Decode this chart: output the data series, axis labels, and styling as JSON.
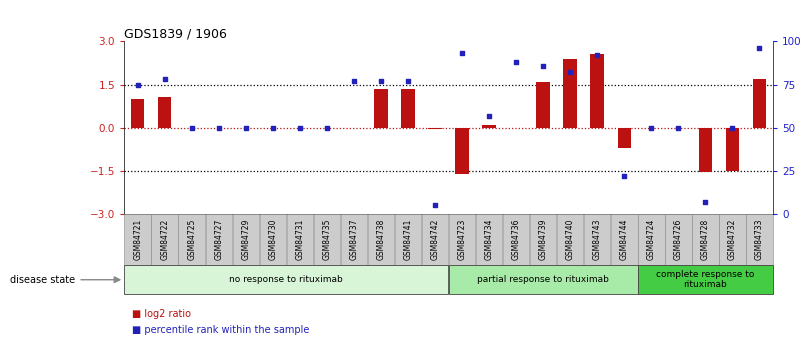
{
  "title": "GDS1839 / 1906",
  "samples": [
    "GSM84721",
    "GSM84722",
    "GSM84725",
    "GSM84727",
    "GSM84729",
    "GSM84730",
    "GSM84731",
    "GSM84735",
    "GSM84737",
    "GSM84738",
    "GSM84741",
    "GSM84742",
    "GSM84723",
    "GSM84734",
    "GSM84736",
    "GSM84739",
    "GSM84740",
    "GSM84743",
    "GSM84744",
    "GSM84724",
    "GSM84726",
    "GSM84728",
    "GSM84732",
    "GSM84733"
  ],
  "log2_ratio": [
    1.0,
    1.05,
    0.0,
    0.0,
    0.0,
    0.0,
    0.0,
    0.0,
    0.0,
    1.35,
    1.35,
    -0.05,
    -1.6,
    0.1,
    0.0,
    1.6,
    2.4,
    2.55,
    -0.7,
    0.0,
    0.0,
    -1.55,
    -1.5,
    1.7
  ],
  "percentile_rank": [
    75,
    78,
    50,
    50,
    50,
    50,
    50,
    50,
    77,
    77,
    77,
    5,
    93,
    57,
    88,
    86,
    82,
    92,
    22,
    50,
    50,
    7,
    50,
    96
  ],
  "groups": [
    {
      "label": "no response to rituximab",
      "start": 0,
      "end": 11,
      "color": "#d8f5d8"
    },
    {
      "label": "partial response to rituximab",
      "start": 12,
      "end": 18,
      "color": "#a8eba8"
    },
    {
      "label": "complete response to\nrituximab",
      "start": 19,
      "end": 23,
      "color": "#44cc44"
    }
  ],
  "ylim_left": [
    -3,
    3
  ],
  "ylim_right": [
    0,
    100
  ],
  "yticks_left": [
    -3,
    -1.5,
    0,
    1.5,
    3
  ],
  "yticks_right": [
    0,
    25,
    50,
    75,
    100
  ],
  "ytick_labels_right": [
    "0",
    "25",
    "50",
    "75",
    "100%"
  ],
  "hlines_black": [
    1.5,
    -1.5
  ],
  "hline_red": 0.0,
  "bar_color": "#bb1111",
  "dot_color": "#2222bb",
  "left_tick_color": "#cc2222",
  "right_tick_color": "#2222cc",
  "legend_log2": "log2 ratio",
  "legend_pct": "percentile rank within the sample",
  "disease_state_label": "disease state",
  "bar_width": 0.5
}
